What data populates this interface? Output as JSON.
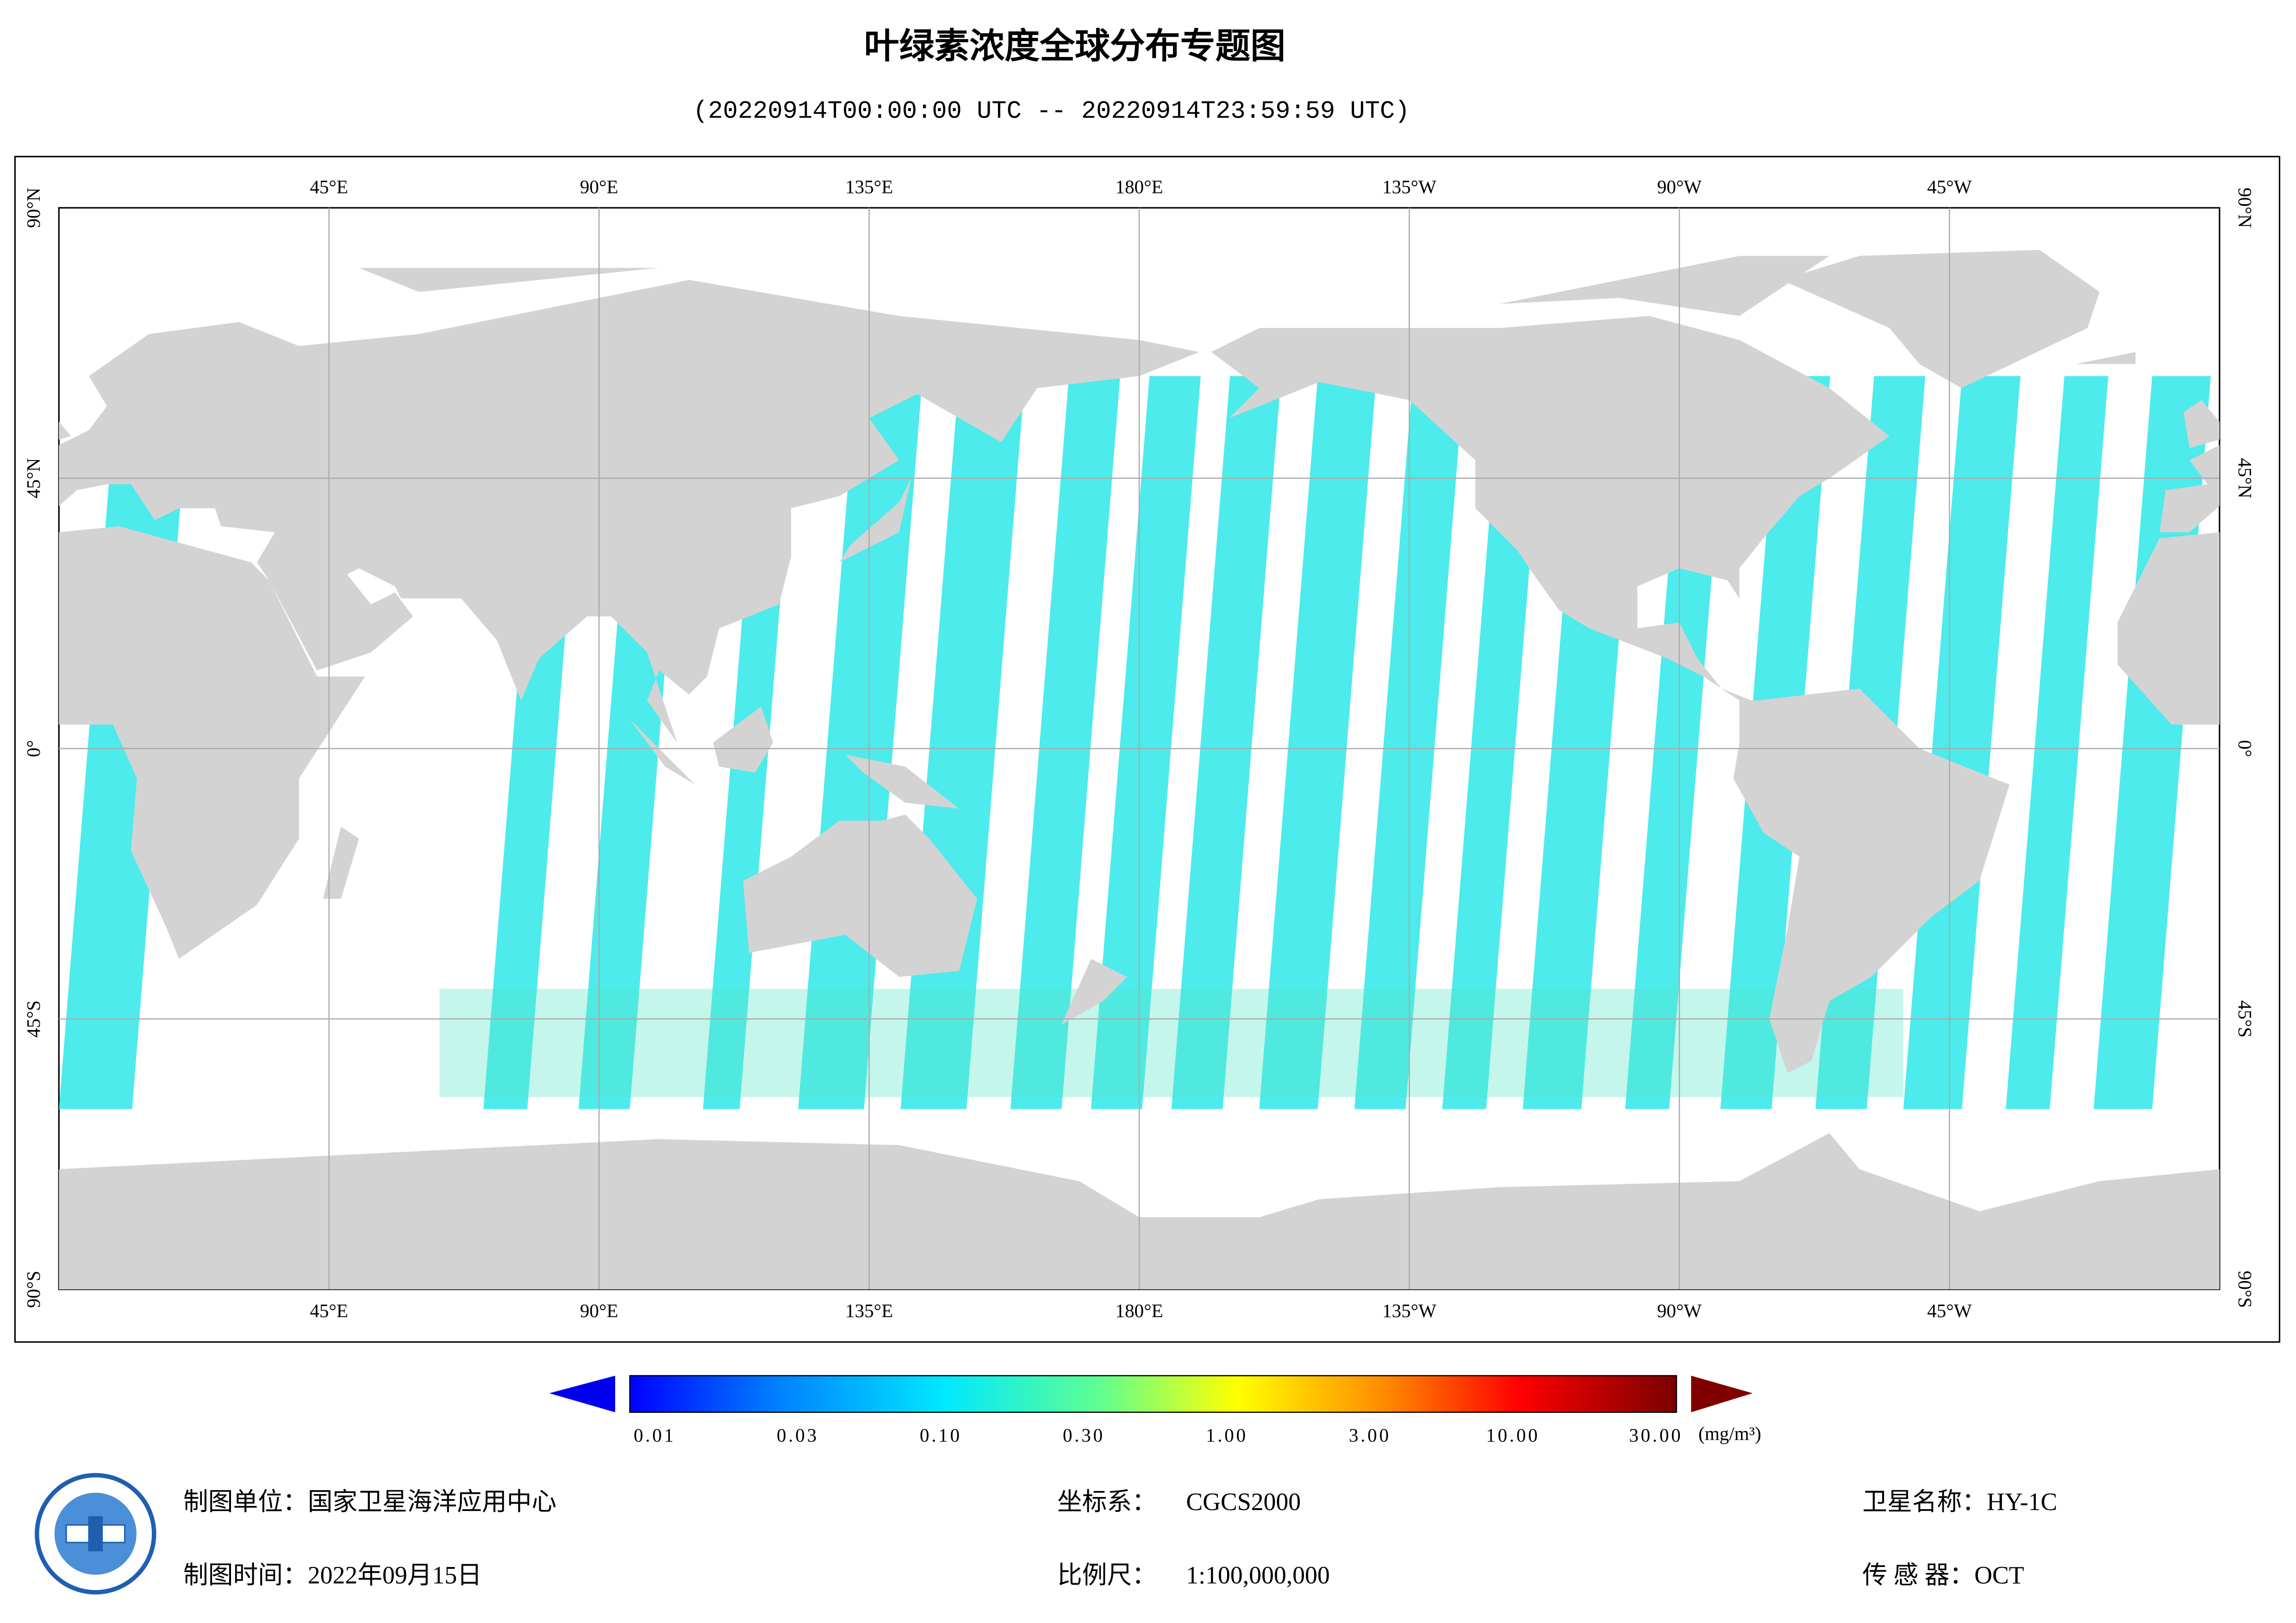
{
  "header": {
    "title": "叶绿素浓度全球分布专题图",
    "subtitle": "(20220914T00:00:00 UTC -- 20220914T23:59:59 UTC)"
  },
  "map": {
    "lon_labels": [
      "45°E",
      "90°E",
      "135°E",
      "180°E",
      "135°W",
      "90°W",
      "45°W"
    ],
    "lat_labels": [
      "90°N",
      "45°N",
      "0°",
      "45°S",
      "90°S"
    ]
  },
  "colorbar": {
    "labels": [
      "0.01",
      "0.03",
      "0.10",
      "0.30",
      "1.00",
      "3.00",
      "10.00",
      "30.00"
    ],
    "unit": "(mg/m³)"
  },
  "footer": {
    "items": [
      {
        "label": "制图单位：",
        "value": "国家卫星海洋应用中心"
      },
      {
        "label": "制图时间：",
        "value": "2022年09月15日"
      },
      {
        "label": "坐标系：",
        "value": "CGCS2000"
      },
      {
        "label": "比例尺：",
        "value": "1:100,000,000"
      },
      {
        "label": "卫星名称：",
        "value": "HY-1C"
      },
      {
        "label": "传 感 器：",
        "value": "OCT"
      }
    ]
  }
}
